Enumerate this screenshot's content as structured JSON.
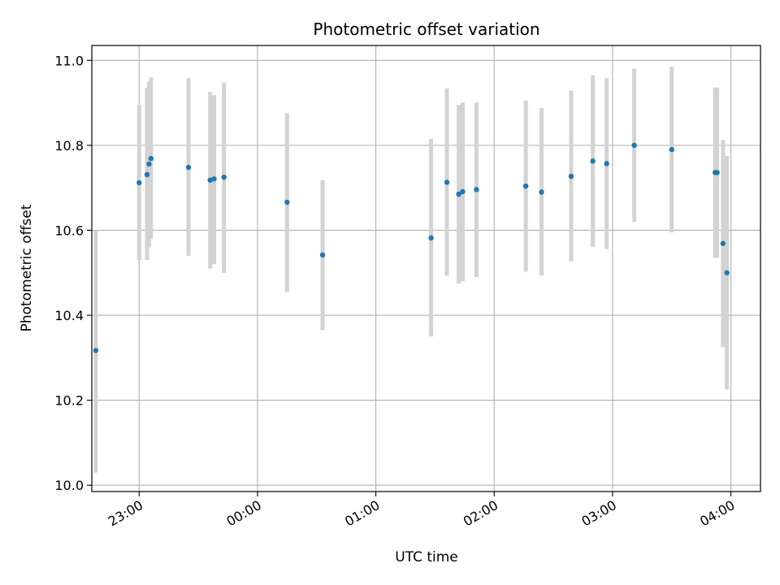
{
  "chart_data": {
    "type": "scatter",
    "title": "Photometric offset variation",
    "xlabel": "UTC time",
    "ylabel": "Photometric offset",
    "x_ticks": [
      "23:00",
      "00:00",
      "01:00",
      "02:00",
      "03:00",
      "04:00"
    ],
    "y_ticks": [
      "10.0",
      "10.2",
      "10.4",
      "10.6",
      "10.8",
      "11.0"
    ],
    "xlim": [
      "22:36",
      "04:15"
    ],
    "ylim": [
      9.985,
      11.035
    ],
    "grid": true,
    "colors": {
      "point": "#1f77b4",
      "errorbar": "#d3d3d3",
      "grid": "#b0b0b0"
    },
    "series": [
      {
        "points": [
          {
            "t": "22:38",
            "y": 10.317,
            "lo": 10.03,
            "hi": 10.6
          },
          {
            "t": "23:00",
            "y": 10.712,
            "lo": 10.53,
            "hi": 10.895
          },
          {
            "t": "23:04",
            "y": 10.731,
            "lo": 10.53,
            "hi": 10.935
          },
          {
            "t": "23:05",
            "y": 10.756,
            "lo": 10.56,
            "hi": 10.95
          },
          {
            "t": "23:06",
            "y": 10.769,
            "lo": 10.58,
            "hi": 10.96
          },
          {
            "t": "23:25",
            "y": 10.748,
            "lo": 10.54,
            "hi": 10.958
          },
          {
            "t": "23:36",
            "y": 10.718,
            "lo": 10.51,
            "hi": 10.926
          },
          {
            "t": "23:38",
            "y": 10.721,
            "lo": 10.52,
            "hi": 10.918
          },
          {
            "t": "23:43",
            "y": 10.725,
            "lo": 10.5,
            "hi": 10.948
          },
          {
            "t": "00:15",
            "y": 10.666,
            "lo": 10.455,
            "hi": 10.876
          },
          {
            "t": "00:33",
            "y": 10.542,
            "lo": 10.365,
            "hi": 10.718
          },
          {
            "t": "01:28",
            "y": 10.582,
            "lo": 10.35,
            "hi": 10.815
          },
          {
            "t": "01:36",
            "y": 10.713,
            "lo": 10.493,
            "hi": 10.934
          },
          {
            "t": "01:42",
            "y": 10.685,
            "lo": 10.475,
            "hi": 10.895
          },
          {
            "t": "01:44",
            "y": 10.691,
            "lo": 10.48,
            "hi": 10.901
          },
          {
            "t": "01:51",
            "y": 10.696,
            "lo": 10.49,
            "hi": 10.901
          },
          {
            "t": "02:16",
            "y": 10.704,
            "lo": 10.502,
            "hi": 10.906
          },
          {
            "t": "02:24",
            "y": 10.69,
            "lo": 10.493,
            "hi": 10.888
          },
          {
            "t": "02:39",
            "y": 10.727,
            "lo": 10.527,
            "hi": 10.929
          },
          {
            "t": "02:50",
            "y": 10.763,
            "lo": 10.561,
            "hi": 10.965
          },
          {
            "t": "02:57",
            "y": 10.757,
            "lo": 10.556,
            "hi": 10.958
          },
          {
            "t": "03:11",
            "y": 10.8,
            "lo": 10.62,
            "hi": 10.98
          },
          {
            "t": "03:30",
            "y": 10.79,
            "lo": 10.595,
            "hi": 10.985
          },
          {
            "t": "03:52",
            "y": 10.736,
            "lo": 10.535,
            "hi": 10.936
          },
          {
            "t": "03:53",
            "y": 10.736,
            "lo": 10.535,
            "hi": 10.936
          },
          {
            "t": "03:56",
            "y": 10.569,
            "lo": 10.325,
            "hi": 10.813
          },
          {
            "t": "03:58",
            "y": 10.5,
            "lo": 10.225,
            "hi": 10.775
          }
        ]
      }
    ]
  }
}
